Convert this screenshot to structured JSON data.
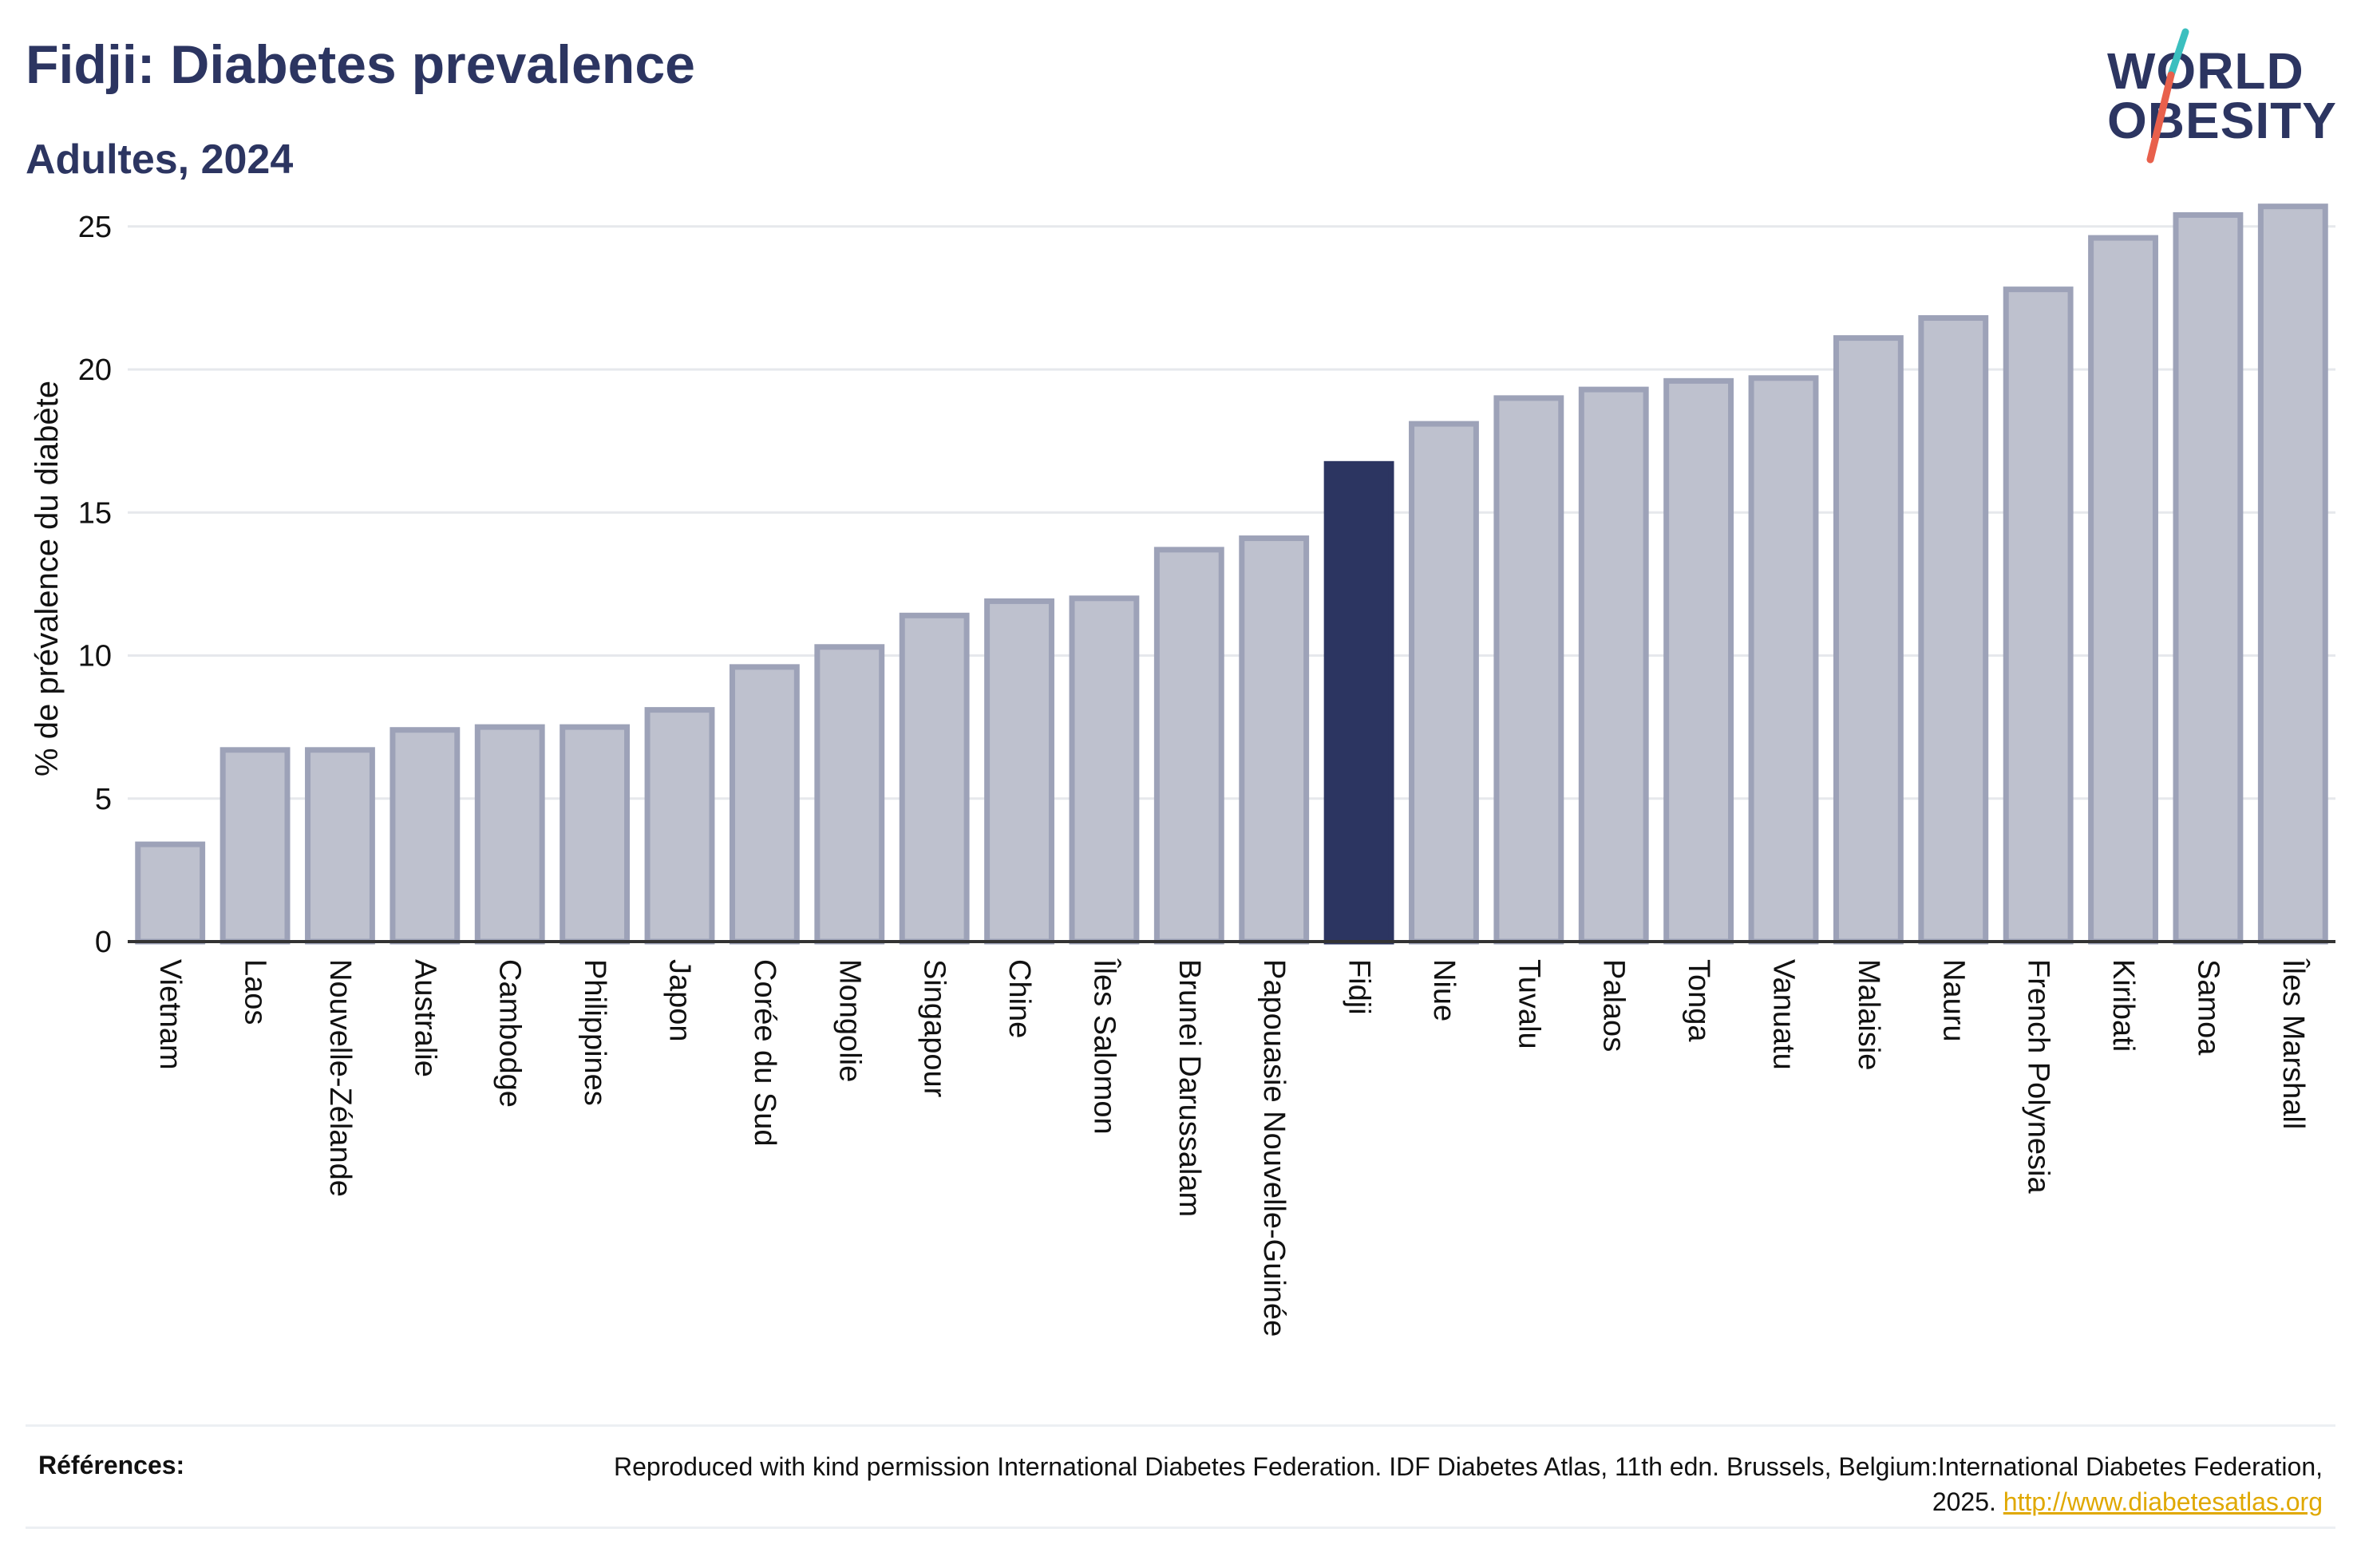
{
  "header": {
    "title": "Fidji: Diabetes prevalence",
    "subtitle": "Adultes, 2024"
  },
  "logo": {
    "line1": "WORLD",
    "line2": "OBESITY"
  },
  "references": {
    "label": "Références:",
    "text": "Reproduced with kind permission International Diabetes Federation. IDF Diabetes Atlas, 11th edn. Brussels, Belgium:International Diabetes Federation, 2025.",
    "link": "http://www.diabetesatlas.org"
  },
  "colors": {
    "bar": "#bec1ce",
    "bar_border": "#9da2b8",
    "highlight": "#2c3561",
    "title": "#2c3561",
    "accent_teal": "#3bbfbf",
    "accent_red": "#e8604c"
  },
  "chart_data": {
    "type": "bar",
    "ylabel": "% de prévalence du diabète",
    "xlabel": "",
    "ylim": [
      0,
      26.5
    ],
    "yticks": [
      0,
      5,
      10,
      15,
      20,
      25
    ],
    "grid": true,
    "highlight": "Fidji",
    "categories": [
      "Vietnam",
      "Laos",
      "Nouvelle-Zélande",
      "Australie",
      "Cambodge",
      "Philippines",
      "Japon",
      "Corée du Sud",
      "Mongolie",
      "Singapour",
      "Chine",
      "Îles Salomon",
      "Brunei Darussalam",
      "Papouasie Nouvelle-Guinée",
      "Fidji",
      "Niue",
      "Tuvalu",
      "Palaos",
      "Tonga",
      "Vanuatu",
      "Malaisie",
      "Nauru",
      "French Polynesia",
      "Kiribati",
      "Samoa",
      "Îles Marshall"
    ],
    "values": [
      3.4,
      6.7,
      6.7,
      7.4,
      7.5,
      7.5,
      8.1,
      9.6,
      10.3,
      11.4,
      11.9,
      12.0,
      13.7,
      14.1,
      16.7,
      18.1,
      19.0,
      19.3,
      19.6,
      19.7,
      21.1,
      21.8,
      22.8,
      24.6,
      25.4,
      25.7
    ]
  }
}
